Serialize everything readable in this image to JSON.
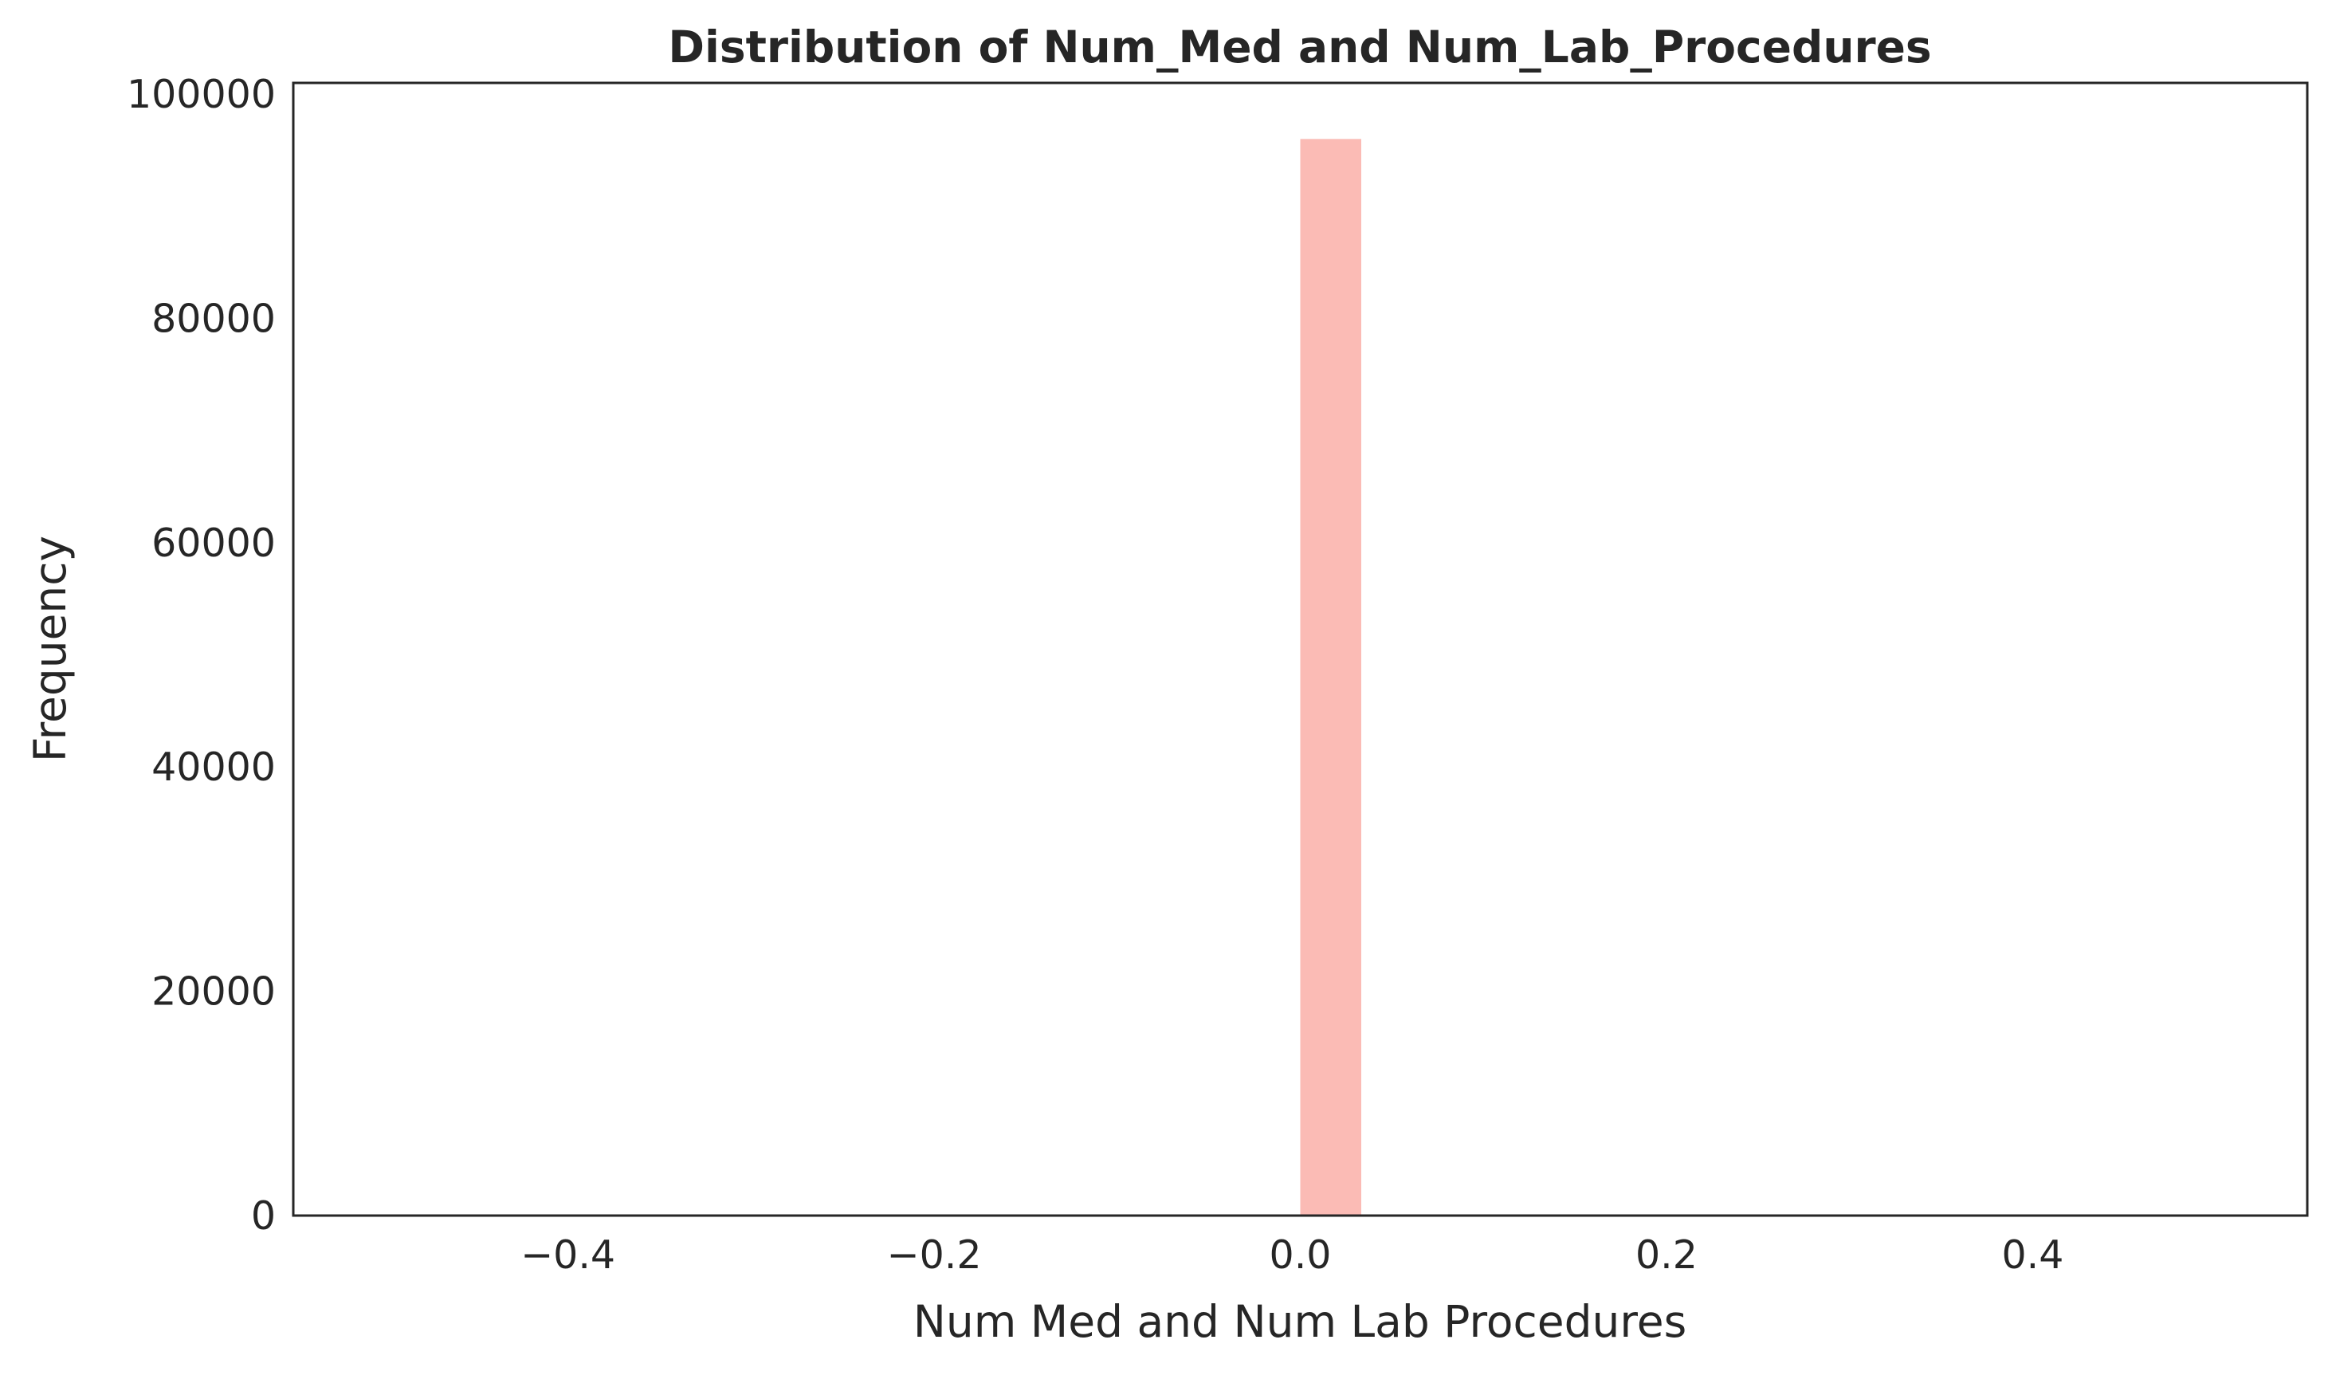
{
  "chart_data": {
    "type": "bar",
    "title": "Distribution of Num_Med and Num_Lab_Procedures",
    "xlabel": "Num Med and Num Lab Procedures",
    "ylabel": "Frequency",
    "xlim": [
      -0.55,
      0.55
    ],
    "ylim": [
      0,
      101000
    ],
    "x_ticks": [
      -0.4,
      -0.2,
      0.0,
      0.2,
      0.4
    ],
    "x_tick_labels": [
      "−0.4",
      "−0.2",
      "0.0",
      "0.2",
      "0.4"
    ],
    "y_ticks": [
      0,
      20000,
      40000,
      60000,
      80000,
      100000
    ],
    "y_tick_labels": [
      "0",
      "20000",
      "40000",
      "60000",
      "80000",
      "100000"
    ],
    "bins": [
      {
        "x_start": 0.0,
        "x_end": 0.0333,
        "value": 96000
      }
    ],
    "bar_color": "#fbbbb5",
    "grid": false,
    "legend": "none"
  }
}
